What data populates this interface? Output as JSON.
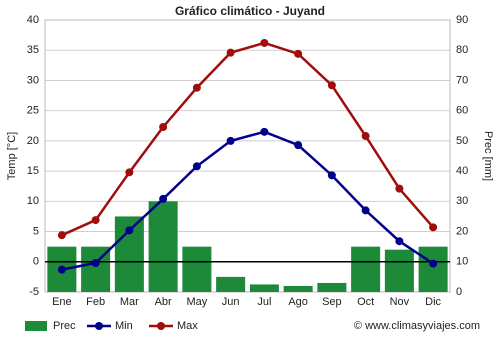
{
  "chart_data": {
    "type": "bar-line",
    "title": "Gráfico climático - Juyand",
    "y_label": "Temp [°C]",
    "y2_label": "Prec [mm]",
    "source": "© www.climasyviajes.com",
    "categories": [
      "Ene",
      "Feb",
      "Mar",
      "Abr",
      "May",
      "Jun",
      "Jul",
      "Ago",
      "Sep",
      "Oct",
      "Nov",
      "Dic"
    ],
    "series": [
      {
        "name": "Prec",
        "type": "bar",
        "axis": "y2",
        "color": "#1d8a3a",
        "values": [
          15,
          15,
          25,
          30,
          15,
          5,
          2.5,
          2,
          3,
          15,
          14,
          15
        ]
      },
      {
        "name": "Min",
        "type": "line",
        "color": "#00008b",
        "values": [
          -1.3,
          -0.2,
          5.2,
          10.4,
          15.8,
          20,
          21.5,
          19.3,
          14.3,
          8.5,
          3.4,
          -0.3
        ]
      },
      {
        "name": "Max",
        "type": "line",
        "color": "#a00d0d",
        "values": [
          4.4,
          6.9,
          14.8,
          22.3,
          28.8,
          34.6,
          36.2,
          34.4,
          29.2,
          20.8,
          12.1,
          5.7
        ]
      }
    ],
    "ylim": [
      -5,
      40
    ],
    "yticks": [
      -5,
      0,
      5,
      10,
      15,
      20,
      25,
      30,
      35,
      40
    ],
    "y2lim": [
      0,
      90
    ],
    "y2ticks": [
      0,
      10,
      20,
      30,
      40,
      50,
      60,
      70,
      80,
      90
    ],
    "grid": true
  }
}
